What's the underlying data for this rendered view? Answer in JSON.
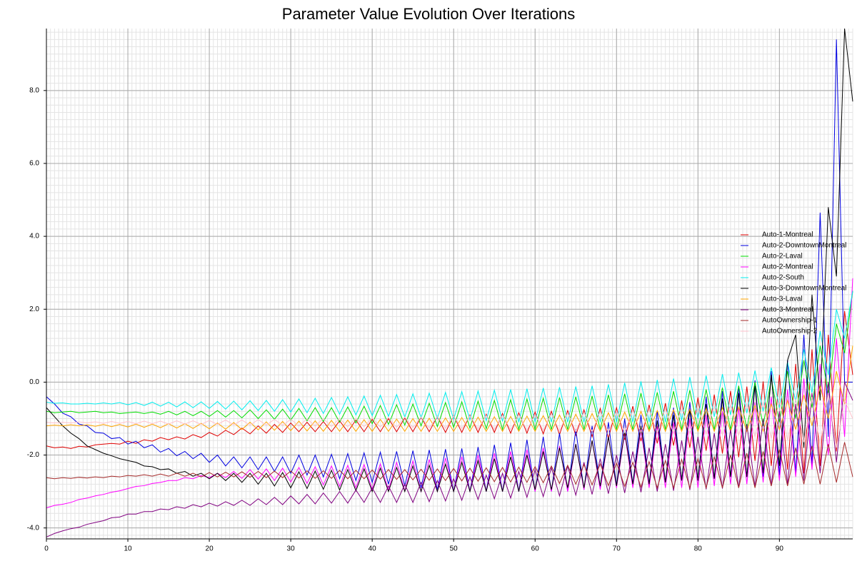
{
  "chart_data": {
    "type": "line",
    "title": "Parameter Value Evolution Over Iterations",
    "x": [
      0,
      1,
      2,
      3,
      4,
      5,
      6,
      7,
      8,
      9,
      10,
      11,
      12,
      13,
      14,
      15,
      16,
      17,
      18,
      19,
      20,
      21,
      22,
      23,
      24,
      25,
      26,
      27,
      28,
      29,
      30,
      31,
      32,
      33,
      34,
      35,
      36,
      37,
      38,
      39,
      40,
      41,
      42,
      43,
      44,
      45,
      46,
      47,
      48,
      49,
      50,
      51,
      52,
      53,
      54,
      55,
      56,
      57,
      58,
      59,
      60,
      61,
      62,
      63,
      64,
      65,
      66,
      67,
      68,
      69,
      70,
      71,
      72,
      73,
      74,
      75,
      76,
      77,
      78,
      79,
      80,
      81,
      82,
      83,
      84,
      85,
      86,
      87,
      88,
      89,
      90,
      91,
      92,
      93,
      94,
      95,
      96,
      97,
      98,
      99
    ],
    "xlim": [
      0,
      99
    ],
    "xticks": [
      0,
      10,
      20,
      30,
      40,
      50,
      60,
      70,
      80,
      90
    ],
    "ylim": [
      -4.3,
      9.7
    ],
    "yticks": [
      {
        "value": -4,
        "label": "-4.0"
      },
      {
        "value": -2,
        "label": "-2.0"
      },
      {
        "value": 0,
        "label": "0.0"
      },
      {
        "value": 2,
        "label": "2.0"
      },
      {
        "value": 4,
        "label": "4.0"
      },
      {
        "value": 6,
        "label": "6.0"
      },
      {
        "value": 8,
        "label": "8.0"
      }
    ],
    "grid": true,
    "minor_grid": true,
    "legend": "center right",
    "series": [
      {
        "name": "Auto-1-Montreal",
        "color": "#e00000",
        "values": [
          -1.75,
          -1.8,
          -1.78,
          -1.82,
          -1.76,
          -1.78,
          -1.72,
          -1.7,
          -1.68,
          -1.7,
          -1.62,
          -1.68,
          -1.58,
          -1.62,
          -1.52,
          -1.58,
          -1.5,
          -1.56,
          -1.44,
          -1.52,
          -1.38,
          -1.48,
          -1.32,
          -1.44,
          -1.26,
          -1.42,
          -1.2,
          -1.4,
          -1.16,
          -1.38,
          -1.12,
          -1.36,
          -1.1,
          -1.36,
          -1.08,
          -1.36,
          -1.06,
          -1.36,
          -1.04,
          -1.36,
          -1.02,
          -1.36,
          -1.0,
          -1.36,
          -0.98,
          -1.36,
          -0.96,
          -1.36,
          -0.94,
          -1.38,
          -0.92,
          -1.38,
          -0.9,
          -1.38,
          -0.88,
          -1.38,
          -0.86,
          -1.4,
          -0.84,
          -1.4,
          -0.82,
          -1.42,
          -0.8,
          -1.44,
          -0.78,
          -1.46,
          -0.76,
          -1.5,
          -0.72,
          -1.54,
          -0.7,
          -1.58,
          -0.66,
          -1.62,
          -0.62,
          -1.68,
          -0.58,
          -1.74,
          -0.5,
          -1.8,
          -0.42,
          -1.88,
          -0.34,
          -1.96,
          -0.24,
          -2.06,
          -0.12,
          -2.16,
          0.02,
          -2.3,
          0.2,
          -2.4,
          0.5,
          -2.5,
          0.9,
          -2.3,
          1.3,
          -1.9,
          1.95,
          0.2
        ]
      },
      {
        "name": "Auto-2-DowntownMontreal",
        "color": "#0000e0",
        "values": [
          -0.4,
          -0.6,
          -0.85,
          -0.95,
          -1.15,
          -1.2,
          -1.38,
          -1.4,
          -1.55,
          -1.52,
          -1.7,
          -1.62,
          -1.8,
          -1.72,
          -1.92,
          -1.82,
          -2.02,
          -1.9,
          -2.1,
          -1.95,
          -2.2,
          -2.0,
          -2.3,
          -2.05,
          -2.35,
          -2.05,
          -2.4,
          -2.05,
          -2.45,
          -2.05,
          -2.5,
          -2.0,
          -2.55,
          -2.0,
          -2.6,
          -1.98,
          -2.65,
          -1.96,
          -2.7,
          -1.94,
          -2.75,
          -1.92,
          -2.8,
          -1.9,
          -2.85,
          -1.88,
          -2.9,
          -1.86,
          -2.95,
          -1.84,
          -3.0,
          -1.82,
          -3.0,
          -1.78,
          -3.0,
          -1.72,
          -3.0,
          -1.66,
          -3.0,
          -1.58,
          -3.0,
          -1.5,
          -3.0,
          -1.4,
          -3.0,
          -1.3,
          -2.95,
          -1.2,
          -2.9,
          -1.1,
          -2.85,
          -1.0,
          -2.8,
          -0.9,
          -2.8,
          -0.8,
          -2.75,
          -0.7,
          -2.7,
          -0.55,
          -2.7,
          -0.4,
          -2.65,
          -0.25,
          -2.6,
          -0.1,
          -2.6,
          0.05,
          -2.6,
          0.3,
          -2.55,
          0.6,
          -2.5,
          1.3,
          -2.3,
          4.65,
          -1.5,
          9.4,
          0.0,
          0.0
        ]
      },
      {
        "name": "Auto-2-Laval",
        "color": "#00dd00",
        "values": [
          -0.8,
          -0.84,
          -0.82,
          -0.8,
          -0.84,
          -0.82,
          -0.8,
          -0.84,
          -0.82,
          -0.86,
          -0.84,
          -0.82,
          -0.86,
          -0.82,
          -0.88,
          -0.8,
          -0.9,
          -0.8,
          -0.92,
          -0.8,
          -0.94,
          -0.78,
          -0.96,
          -0.78,
          -0.98,
          -0.76,
          -1.0,
          -0.76,
          -1.02,
          -0.74,
          -1.04,
          -0.72,
          -1.06,
          -0.7,
          -1.08,
          -0.7,
          -1.1,
          -0.68,
          -1.12,
          -0.66,
          -1.14,
          -0.64,
          -1.16,
          -0.62,
          -1.18,
          -0.6,
          -1.2,
          -0.58,
          -1.22,
          -0.56,
          -1.24,
          -0.54,
          -1.26,
          -0.52,
          -1.28,
          -0.5,
          -1.3,
          -0.48,
          -1.3,
          -0.46,
          -1.3,
          -0.44,
          -1.3,
          -0.42,
          -1.3,
          -0.4,
          -1.3,
          -0.38,
          -1.3,
          -0.35,
          -1.3,
          -0.32,
          -1.3,
          -0.3,
          -1.3,
          -0.28,
          -1.3,
          -0.25,
          -1.3,
          -0.22,
          -1.3,
          -0.2,
          -1.3,
          -0.15,
          -1.3,
          -0.1,
          -1.3,
          0.0,
          -1.2,
          0.1,
          -1.1,
          0.3,
          -1.0,
          0.6,
          -0.7,
          1.0,
          -0.3,
          1.6,
          0.8,
          2.5
        ]
      },
      {
        "name": "Auto-2-Montreal",
        "color": "#ff00ff",
        "values": [
          -3.45,
          -3.38,
          -3.35,
          -3.3,
          -3.22,
          -3.18,
          -3.12,
          -3.08,
          -3.02,
          -2.98,
          -2.92,
          -2.86,
          -2.84,
          -2.78,
          -2.75,
          -2.7,
          -2.7,
          -2.62,
          -2.65,
          -2.56,
          -2.62,
          -2.5,
          -2.62,
          -2.45,
          -2.64,
          -2.4,
          -2.66,
          -2.38,
          -2.7,
          -2.36,
          -2.74,
          -2.34,
          -2.78,
          -2.32,
          -2.82,
          -2.3,
          -2.86,
          -2.28,
          -2.9,
          -2.26,
          -2.94,
          -2.24,
          -2.96,
          -2.2,
          -2.98,
          -2.16,
          -3.0,
          -2.12,
          -3.0,
          -2.08,
          -3.0,
          -2.04,
          -3.0,
          -2.0,
          -3.0,
          -1.95,
          -3.0,
          -1.9,
          -3.0,
          -1.85,
          -3.0,
          -1.8,
          -3.0,
          -1.75,
          -3.0,
          -1.7,
          -2.95,
          -1.6,
          -2.95,
          -1.5,
          -2.9,
          -1.4,
          -2.9,
          -1.3,
          -2.9,
          -1.2,
          -2.9,
          -1.1,
          -2.9,
          -1.0,
          -2.9,
          -0.9,
          -2.85,
          -0.8,
          -2.8,
          -0.7,
          -2.8,
          -0.55,
          -2.75,
          -0.4,
          -2.7,
          -0.2,
          -2.6,
          0.1,
          -2.4,
          0.5,
          -2.0,
          1.2,
          -1.5,
          2.85
        ]
      },
      {
        "name": "Auto-2-South",
        "color": "#00eeee",
        "values": [
          -0.55,
          -0.58,
          -0.57,
          -0.6,
          -0.6,
          -0.58,
          -0.6,
          -0.57,
          -0.6,
          -0.56,
          -0.62,
          -0.56,
          -0.64,
          -0.55,
          -0.66,
          -0.55,
          -0.68,
          -0.54,
          -0.7,
          -0.54,
          -0.72,
          -0.53,
          -0.74,
          -0.52,
          -0.76,
          -0.51,
          -0.78,
          -0.5,
          -0.8,
          -0.48,
          -0.82,
          -0.46,
          -0.84,
          -0.44,
          -0.86,
          -0.42,
          -0.88,
          -0.4,
          -0.9,
          -0.38,
          -0.92,
          -0.36,
          -0.94,
          -0.34,
          -0.96,
          -0.32,
          -0.98,
          -0.3,
          -1.0,
          -0.28,
          -1.02,
          -0.26,
          -1.04,
          -0.24,
          -1.06,
          -0.22,
          -1.08,
          -0.2,
          -1.1,
          -0.18,
          -1.1,
          -0.16,
          -1.1,
          -0.14,
          -1.1,
          -0.12,
          -1.1,
          -0.1,
          -1.1,
          -0.06,
          -1.1,
          -0.02,
          -1.1,
          0.02,
          -1.1,
          0.06,
          -1.1,
          0.1,
          -1.05,
          0.14,
          -1.0,
          0.18,
          -0.95,
          0.22,
          -0.9,
          0.26,
          -0.85,
          0.32,
          -0.8,
          0.4,
          -0.7,
          0.55,
          -0.55,
          0.9,
          -0.3,
          1.4,
          0.2,
          2.0,
          1.2,
          2.5
        ]
      },
      {
        "name": "Auto-3-DowntownMontreal",
        "color": "#000000",
        "values": [
          -0.7,
          -0.95,
          -1.2,
          -1.4,
          -1.55,
          -1.75,
          -1.85,
          -1.95,
          -2.02,
          -2.1,
          -2.15,
          -2.2,
          -2.3,
          -2.32,
          -2.4,
          -2.38,
          -2.5,
          -2.45,
          -2.58,
          -2.5,
          -2.65,
          -2.5,
          -2.7,
          -2.5,
          -2.75,
          -2.5,
          -2.8,
          -2.5,
          -2.85,
          -2.48,
          -2.9,
          -2.46,
          -2.92,
          -2.44,
          -2.94,
          -2.42,
          -2.96,
          -2.4,
          -2.98,
          -2.38,
          -3.0,
          -2.36,
          -3.0,
          -2.34,
          -3.0,
          -2.3,
          -3.0,
          -2.28,
          -3.0,
          -2.25,
          -3.0,
          -2.2,
          -3.0,
          -2.15,
          -3.0,
          -2.1,
          -3.0,
          -2.05,
          -3.0,
          -2.0,
          -2.95,
          -1.9,
          -2.95,
          -1.8,
          -2.9,
          -1.7,
          -2.9,
          -1.6,
          -2.85,
          -1.5,
          -2.85,
          -1.35,
          -2.8,
          -1.2,
          -2.8,
          -1.05,
          -2.75,
          -0.9,
          -2.7,
          -0.75,
          -2.7,
          -0.6,
          -2.65,
          -0.45,
          -2.6,
          -0.3,
          -2.6,
          -0.1,
          -2.5,
          0.2,
          -2.3,
          0.6,
          1.3,
          -1.8,
          2.4,
          -0.5,
          4.8,
          2.9,
          9.7,
          7.7
        ]
      },
      {
        "name": "Auto-3-Laval",
        "color": "#ffa500",
        "values": [
          -1.2,
          -1.18,
          -1.2,
          -1.17,
          -1.2,
          -1.17,
          -1.21,
          -1.16,
          -1.22,
          -1.16,
          -1.23,
          -1.15,
          -1.24,
          -1.15,
          -1.25,
          -1.14,
          -1.26,
          -1.14,
          -1.27,
          -1.13,
          -1.28,
          -1.12,
          -1.29,
          -1.11,
          -1.3,
          -1.1,
          -1.31,
          -1.09,
          -1.32,
          -1.08,
          -1.33,
          -1.07,
          -1.34,
          -1.06,
          -1.35,
          -1.05,
          -1.35,
          -1.04,
          -1.35,
          -1.03,
          -1.35,
          -1.02,
          -1.35,
          -1.01,
          -1.35,
          -1.0,
          -1.35,
          -0.99,
          -1.35,
          -0.98,
          -1.35,
          -0.97,
          -1.35,
          -0.96,
          -1.35,
          -0.95,
          -1.35,
          -0.94,
          -1.35,
          -0.93,
          -1.35,
          -0.92,
          -1.35,
          -0.9,
          -1.35,
          -0.88,
          -1.35,
          -0.86,
          -1.35,
          -0.84,
          -1.35,
          -0.82,
          -1.35,
          -0.8,
          -1.35,
          -0.78,
          -1.35,
          -0.76,
          -1.35,
          -0.74,
          -1.35,
          -0.72,
          -1.35,
          -0.7,
          -1.35,
          -0.68,
          -1.35,
          -0.64,
          -1.35,
          -0.6,
          -1.3,
          -0.5,
          -1.3,
          -0.35,
          -1.2,
          -0.1,
          -1.0,
          0.3,
          -0.6,
          1.0
        ]
      },
      {
        "name": "Auto-3-Montreal",
        "color": "#800080",
        "values": [
          -4.25,
          -4.15,
          -4.08,
          -4.02,
          -3.98,
          -3.9,
          -3.85,
          -3.8,
          -3.72,
          -3.7,
          -3.62,
          -3.62,
          -3.55,
          -3.55,
          -3.48,
          -3.5,
          -3.42,
          -3.46,
          -3.36,
          -3.42,
          -3.32,
          -3.4,
          -3.28,
          -3.38,
          -3.24,
          -3.38,
          -3.2,
          -3.36,
          -3.16,
          -3.36,
          -3.12,
          -3.34,
          -3.08,
          -3.34,
          -3.04,
          -3.32,
          -3.0,
          -3.32,
          -2.96,
          -3.3,
          -2.9,
          -3.3,
          -2.85,
          -3.3,
          -2.8,
          -3.3,
          -2.75,
          -3.28,
          -2.7,
          -3.26,
          -2.65,
          -3.24,
          -2.6,
          -3.22,
          -2.55,
          -3.2,
          -2.5,
          -3.18,
          -2.45,
          -3.16,
          -2.4,
          -3.14,
          -2.35,
          -3.12,
          -2.3,
          -3.1,
          -2.2,
          -3.08,
          -2.1,
          -3.06,
          -2.0,
          -3.04,
          -1.9,
          -3.02,
          -1.8,
          -3.0,
          -1.7,
          -2.98,
          -1.6,
          -2.96,
          -1.5,
          -2.94,
          -1.4,
          -2.92,
          -1.3,
          -2.9,
          -1.15,
          -2.88,
          -1.0,
          -2.85,
          -0.8,
          -2.8,
          -0.6,
          -2.7,
          -0.3,
          -2.5,
          0.0,
          -2.2,
          0.0,
          -0.5
        ]
      },
      {
        "name": "AutoOwnership-1",
        "color": "#a52a2a",
        "values": [
          -2.62,
          -2.65,
          -2.62,
          -2.64,
          -2.61,
          -2.63,
          -2.6,
          -2.62,
          -2.58,
          -2.6,
          -2.56,
          -2.58,
          -2.54,
          -2.58,
          -2.52,
          -2.58,
          -2.5,
          -2.58,
          -2.5,
          -2.6,
          -2.48,
          -2.6,
          -2.47,
          -2.6,
          -2.46,
          -2.61,
          -2.45,
          -2.62,
          -2.44,
          -2.62,
          -2.44,
          -2.63,
          -2.43,
          -2.64,
          -2.43,
          -2.64,
          -2.42,
          -2.65,
          -2.42,
          -2.65,
          -2.41,
          -2.66,
          -2.4,
          -2.67,
          -2.4,
          -2.68,
          -2.39,
          -2.69,
          -2.38,
          -2.7,
          -2.37,
          -2.71,
          -2.36,
          -2.72,
          -2.35,
          -2.73,
          -2.34,
          -2.74,
          -2.33,
          -2.75,
          -2.32,
          -2.76,
          -2.3,
          -2.78,
          -2.28,
          -2.8,
          -2.26,
          -2.82,
          -2.24,
          -2.84,
          -2.22,
          -2.86,
          -2.2,
          -2.88,
          -2.18,
          -2.9,
          -2.15,
          -2.9,
          -2.12,
          -2.9,
          -2.1,
          -2.9,
          -2.05,
          -2.9,
          -2.0,
          -2.9,
          -1.95,
          -2.9,
          -1.9,
          -2.85,
          -1.85,
          -2.85,
          -1.8,
          -2.8,
          -1.75,
          -2.8,
          -1.7,
          -2.75,
          -1.65,
          -2.6
        ]
      },
      {
        "name": "AutoOwnership-2",
        "color": "#ffc0cb",
        "values": [
          -1.1,
          -1.12,
          -1.1,
          -1.12,
          -1.09,
          -1.12,
          -1.09,
          -1.13,
          -1.08,
          -1.13,
          -1.08,
          -1.14,
          -1.07,
          -1.14,
          -1.07,
          -1.15,
          -1.06,
          -1.15,
          -1.06,
          -1.16,
          -1.05,
          -1.16,
          -1.04,
          -1.17,
          -1.04,
          -1.18,
          -1.03,
          -1.18,
          -1.02,
          -1.19,
          -1.02,
          -1.2,
          -1.01,
          -1.2,
          -1.0,
          -1.21,
          -1.0,
          -1.22,
          -0.99,
          -1.22,
          -0.98,
          -1.23,
          -0.97,
          -1.24,
          -0.96,
          -1.25,
          -0.95,
          -1.26,
          -0.94,
          -1.27,
          -0.93,
          -1.28,
          -0.92,
          -1.29,
          -0.91,
          -1.3,
          -0.9,
          -1.31,
          -0.89,
          -1.32,
          -0.88,
          -1.33,
          -0.86,
          -1.34,
          -0.84,
          -1.35,
          -0.82,
          -1.36,
          -0.8,
          -1.37,
          -0.78,
          -1.38,
          -0.76,
          -1.39,
          -0.74,
          -1.4,
          -0.72,
          -1.41,
          -0.7,
          -1.42,
          -0.68,
          -1.43,
          -0.65,
          -1.45,
          -0.62,
          -1.47,
          -0.58,
          -1.5,
          -0.54,
          -1.55,
          -0.5,
          -1.6,
          -0.45,
          -1.65,
          -0.4,
          -1.7,
          -0.3,
          -1.8,
          -0.5,
          -1.0
        ]
      }
    ]
  }
}
